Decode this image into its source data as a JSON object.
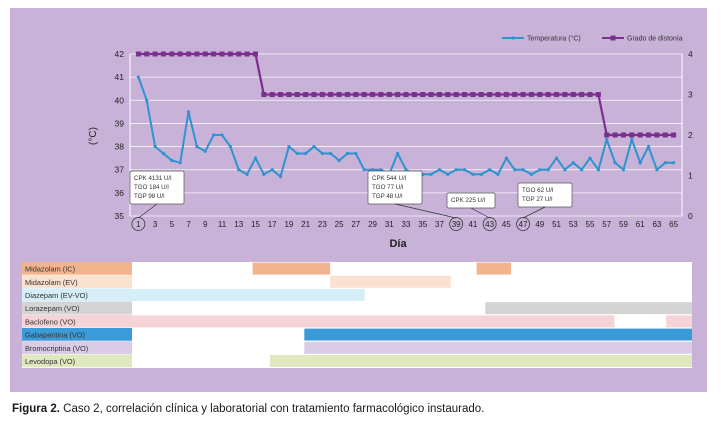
{
  "chart_data": {
    "type": "line",
    "xlabel": "Día",
    "ylabel_left": "(°C)",
    "ylim_left": [
      35,
      42
    ],
    "yticks_left": [
      35,
      36,
      37,
      38,
      39,
      40,
      41,
      42
    ],
    "ylim_right": [
      0,
      4
    ],
    "yticks_right": [
      0,
      1,
      2,
      3,
      4
    ],
    "xlim": [
      0,
      66
    ],
    "xticks": [
      1,
      3,
      5,
      7,
      9,
      11,
      13,
      15,
      17,
      19,
      21,
      23,
      25,
      27,
      29,
      31,
      33,
      35,
      37,
      39,
      41,
      43,
      45,
      47,
      49,
      51,
      53,
      55,
      57,
      59,
      61,
      63,
      65
    ],
    "legend_placement": "top-right",
    "grid": "horizontal",
    "series": [
      {
        "name": "Temperatura (°C)",
        "axis": "left",
        "color": "#2f93d0",
        "x": [
          1,
          2,
          3,
          4,
          5,
          6,
          7,
          8,
          9,
          10,
          11,
          12,
          13,
          14,
          15,
          16,
          17,
          18,
          19,
          20,
          21,
          22,
          23,
          24,
          25,
          26,
          27,
          28,
          29,
          30,
          31,
          32,
          33,
          34,
          35,
          36,
          37,
          38,
          39,
          40,
          41,
          42,
          43,
          44,
          45,
          46,
          47,
          48,
          49,
          50,
          51,
          52,
          53,
          54,
          55,
          56,
          57,
          58,
          59,
          60,
          61,
          62,
          63,
          64,
          65
        ],
        "values": [
          41,
          40,
          38,
          37.7,
          37.4,
          37.3,
          39.5,
          38,
          37.8,
          38.5,
          38.5,
          38,
          37,
          36.8,
          37.5,
          36.8,
          37,
          36.7,
          38,
          37.7,
          37.7,
          38,
          37.7,
          37.7,
          37.4,
          37.7,
          37.7,
          37,
          37,
          37,
          36.8,
          37.7,
          37,
          36.8,
          36.8,
          36.8,
          37,
          36.8,
          37,
          37,
          36.8,
          36.8,
          37,
          36.8,
          37.5,
          37,
          37,
          36.8,
          37,
          37,
          37.5,
          37,
          37.3,
          37,
          37.5,
          37,
          38.3,
          37.3,
          37,
          38.3,
          37.3,
          38,
          37,
          37.3,
          37.3
        ]
      },
      {
        "name": "Grado de distonía",
        "axis": "right",
        "color": "#7b2f8e",
        "x": [
          1,
          2,
          3,
          4,
          5,
          6,
          7,
          8,
          9,
          10,
          11,
          12,
          13,
          14,
          15,
          16,
          17,
          18,
          19,
          20,
          21,
          22,
          23,
          24,
          25,
          26,
          27,
          28,
          29,
          30,
          31,
          32,
          33,
          34,
          35,
          36,
          37,
          38,
          39,
          40,
          41,
          42,
          43,
          44,
          45,
          46,
          47,
          48,
          49,
          50,
          51,
          52,
          53,
          54,
          55,
          56,
          57,
          58,
          59,
          60,
          61,
          62,
          63,
          64,
          65
        ],
        "values": [
          4,
          4,
          4,
          4,
          4,
          4,
          4,
          4,
          4,
          4,
          4,
          4,
          4,
          4,
          4,
          3,
          3,
          3,
          3,
          3,
          3,
          3,
          3,
          3,
          3,
          3,
          3,
          3,
          3,
          3,
          3,
          3,
          3,
          3,
          3,
          3,
          3,
          3,
          3,
          3,
          3,
          3,
          3,
          3,
          3,
          3,
          3,
          3,
          3,
          3,
          3,
          3,
          3,
          3,
          3,
          3,
          2,
          2,
          2,
          2,
          2,
          2,
          2,
          2,
          2
        ]
      }
    ],
    "annotations": [
      {
        "day": 1,
        "lines": [
          "CPK  4131 U/l",
          "TGO  184 U/l",
          "TGP    98 U/l"
        ]
      },
      {
        "day": 39,
        "lines": [
          "CPK  544 U/l",
          "TGO  77 U/l",
          "TGP  48 U/l"
        ]
      },
      {
        "day": 43,
        "lines": [
          "CPK  225 U/l"
        ]
      },
      {
        "day": 47,
        "lines": [
          "TGO  62 U/l",
          "TGP  27 U/l"
        ]
      }
    ],
    "treatments": [
      {
        "name": "Midazolam (IC)",
        "label_color": "#f2b48e",
        "segments": [
          [
            15,
            24
          ],
          [
            41,
            45
          ]
        ]
      },
      {
        "name": "Midazolam (EV)",
        "label_color": "#fbe1cf",
        "segments": [
          [
            24,
            38
          ]
        ]
      },
      {
        "name": "Diazepam (EV-VO)",
        "label_color": "#d5eef7",
        "segments": [
          [
            1,
            28
          ]
        ]
      },
      {
        "name": "Lorazepam (VO)",
        "label_color": "#d4d4d4",
        "segments": [
          [
            42,
            66
          ]
        ]
      },
      {
        "name": "Baclofeno (VO)",
        "label_color": "#f6d3d6",
        "segments": [
          [
            1,
            57
          ],
          [
            63,
            66
          ]
        ]
      },
      {
        "name": "Gabapentina (VO)",
        "label_color": "#3b9bd8",
        "segments": [
          [
            21,
            66
          ]
        ]
      },
      {
        "name": "Bromocriptina (VO)",
        "label_color": "#dacbe6",
        "segments": [
          [
            21,
            66
          ]
        ]
      },
      {
        "name": "Levodopa (VO)",
        "label_color": "#dfe8bf",
        "segments": [
          [
            17,
            66
          ]
        ]
      }
    ]
  },
  "caption": {
    "label": "Figura 2.",
    "text": " Caso 2, correlación clínica y laboratorial con tratamiento farmacológico instaurado."
  }
}
